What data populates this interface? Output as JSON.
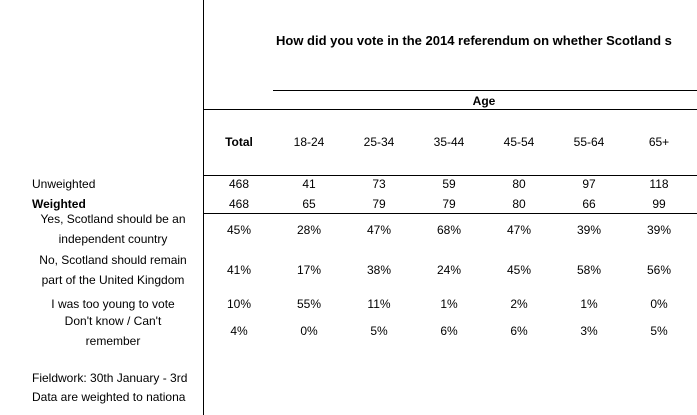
{
  "title": "How did you vote in the 2014 referendum on whether Scotland s",
  "group_header": "Age",
  "columns": [
    "Total",
    "18-24",
    "25-34",
    "35-44",
    "45-54",
    "55-64",
    "65+"
  ],
  "base_rows": [
    {
      "label": "Unweighted",
      "values": [
        "468",
        "41",
        "73",
        "59",
        "80",
        "97",
        "118"
      ]
    },
    {
      "label": "Weighted",
      "values": [
        "468",
        "65",
        "79",
        "79",
        "80",
        "66",
        "99"
      ]
    }
  ],
  "rows": [
    {
      "label": [
        "Yes, Scotland should be an",
        "independent country"
      ],
      "values": [
        "45%",
        "28%",
        "47%",
        "68%",
        "47%",
        "39%",
        "39%"
      ]
    },
    {
      "label": [
        "No, Scotland should remain",
        "part of the United Kingdom"
      ],
      "values": [
        "41%",
        "17%",
        "38%",
        "24%",
        "45%",
        "58%",
        "56%"
      ]
    },
    {
      "label": [
        "I was too young to vote"
      ],
      "values": [
        "10%",
        "55%",
        "11%",
        "1%",
        "2%",
        "1%",
        "0%"
      ]
    },
    {
      "label": [
        "Don't know / Can't",
        "remember"
      ],
      "values": [
        "4%",
        "0%",
        "5%",
        "6%",
        "6%",
        "3%",
        "5%"
      ]
    }
  ],
  "notes": [
    "Fieldwork: 30th January - 3rd",
    "Data are weighted to nationa"
  ]
}
